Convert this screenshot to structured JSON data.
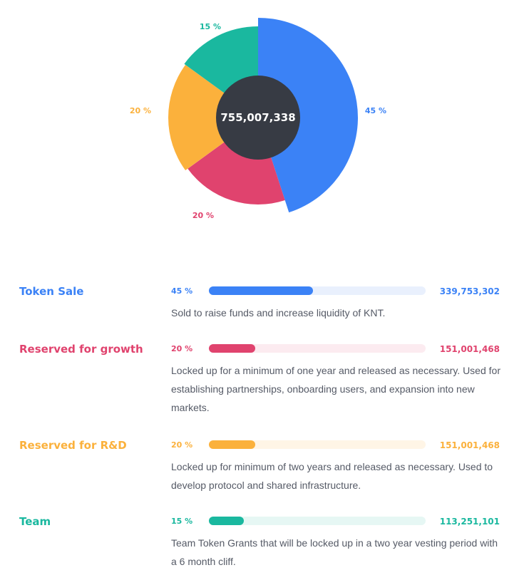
{
  "chart_data": {
    "type": "pie",
    "center_value": "755,007,338",
    "slices": [
      {
        "name": "Token Sale",
        "value": 45,
        "label": "45 %",
        "color": "#3b82f6"
      },
      {
        "name": "Reserved for growth",
        "value": 20,
        "label": "20 %",
        "color": "#e0436e"
      },
      {
        "name": "Reserved for R&D",
        "value": 20,
        "label": "20 %",
        "color": "#fbb13c"
      },
      {
        "name": "Team",
        "value": 15,
        "label": "15 %",
        "color": "#1ab89f"
      }
    ],
    "center_color": "#373b44"
  },
  "allocations": [
    {
      "name": "Token Sale",
      "percent_label": "45 %",
      "percent": 45,
      "amount": "339,753,302",
      "description": "Sold to raise funds and increase liquidity of KNT.",
      "color": "#3b82f6",
      "track_color": "#e9f0fd"
    },
    {
      "name": "Reserved for growth",
      "percent_label": "20 %",
      "percent": 20,
      "amount": "151,001,468",
      "description": "Locked up for a minimum of one year and released as necessary. Used for establishing partnerships, onboarding users, and expansion into new markets.",
      "color": "#e0436e",
      "track_color": "#fcebf0"
    },
    {
      "name": "Reserved for R&D",
      "percent_label": "20 %",
      "percent": 20,
      "amount": "151,001,468",
      "description": "Locked up for minimum of two years and released as necessary. Used to develop protocol and shared infrastructure.",
      "color": "#fbb13c",
      "track_color": "#fff5e6"
    },
    {
      "name": "Team",
      "percent_label": "15 %",
      "percent": 15,
      "amount": "113,251,101",
      "description": "Team Token Grants that will be locked up in a two year vesting period with a 6 month cliff.",
      "color": "#1ab89f",
      "track_color": "#e6f7f4"
    }
  ]
}
